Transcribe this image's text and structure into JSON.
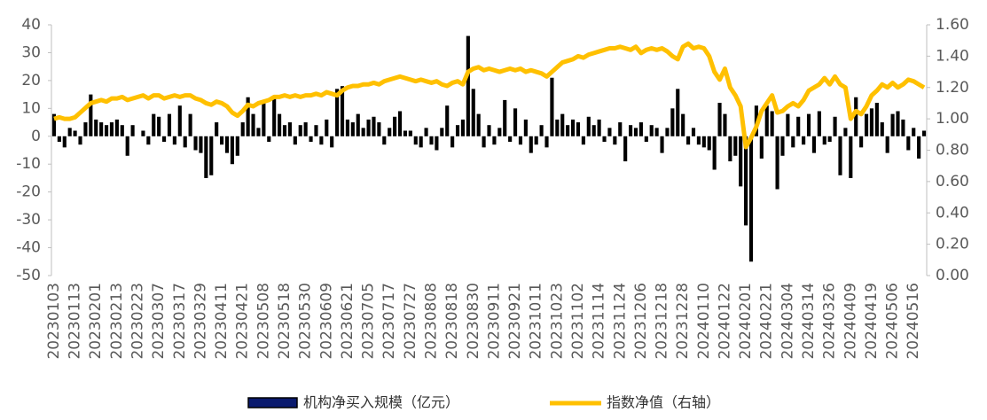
{
  "chart_data": {
    "type": "bar-line",
    "categories": [
      "20230103",
      null,
      null,
      null,
      "20230113",
      null,
      null,
      null,
      "20230201",
      null,
      null,
      null,
      "20230213",
      null,
      null,
      null,
      "20230223",
      null,
      null,
      null,
      "20230307",
      null,
      null,
      null,
      "20230317",
      null,
      null,
      null,
      "20230329",
      null,
      null,
      null,
      "20230411",
      null,
      null,
      null,
      "20230421",
      null,
      null,
      null,
      "20230508",
      null,
      null,
      null,
      "20230518",
      null,
      null,
      null,
      "20230530",
      null,
      null,
      null,
      "20230609",
      null,
      null,
      null,
      "20230621",
      null,
      null,
      null,
      "20230705",
      null,
      null,
      null,
      "20230717",
      null,
      null,
      null,
      "20230727",
      null,
      null,
      null,
      "20230808",
      null,
      null,
      null,
      "20230818",
      null,
      null,
      null,
      "20230830",
      null,
      null,
      null,
      "20230911",
      null,
      null,
      null,
      "20230921",
      null,
      null,
      null,
      "20231011",
      null,
      null,
      null,
      "20231023",
      null,
      null,
      null,
      "20231102",
      null,
      null,
      null,
      "20231114",
      null,
      null,
      null,
      "20231124",
      null,
      null,
      null,
      "20231206",
      null,
      null,
      null,
      "20231218",
      null,
      null,
      null,
      "20231228",
      null,
      null,
      null,
      "20240110",
      null,
      null,
      null,
      "20240122",
      null,
      null,
      null,
      "20240201",
      null,
      null,
      null,
      "20240221",
      null,
      null,
      null,
      "20240304",
      null,
      null,
      null,
      "20240314",
      null,
      null,
      null,
      "20240326",
      null,
      null,
      null,
      "20240409",
      null,
      null,
      null,
      "20240419",
      null,
      null,
      null,
      "20240506",
      null,
      null,
      null,
      "20240516",
      null,
      null
    ],
    "series": [
      {
        "name": "机构净买入规模（亿元）",
        "color": "#000000",
        "legend_color": "#0a1a6e",
        "values": [
          8,
          -2,
          -4,
          3,
          2,
          -3,
          5,
          15,
          6,
          5,
          4,
          5,
          6,
          4,
          -7,
          4,
          0,
          2,
          -3,
          8,
          7,
          -2,
          8,
          -3,
          11,
          -4,
          8,
          -5,
          -6,
          -15,
          -14,
          5,
          -3,
          -6,
          -10,
          -7,
          5,
          14,
          8,
          3,
          12,
          -2,
          14,
          8,
          4,
          5,
          -3,
          4,
          5,
          -2,
          4,
          -3,
          6,
          -4,
          17,
          18,
          6,
          5,
          8,
          3,
          6,
          7,
          5,
          -3,
          3,
          7,
          9,
          2,
          2,
          -3,
          -4,
          3,
          -3,
          -5,
          3,
          11,
          -4,
          4,
          6,
          36,
          17,
          8,
          -4,
          4,
          -3,
          3,
          13,
          -2,
          10,
          -3,
          6,
          -6,
          -3,
          4,
          -4,
          21,
          6,
          8,
          4,
          6,
          5,
          -3,
          7,
          4,
          6,
          -2,
          3,
          -3,
          5,
          -9,
          4,
          3,
          5,
          -2,
          4,
          3,
          -6,
          3,
          10,
          17,
          8,
          -3,
          3,
          -3,
          -4,
          -5,
          -12,
          12,
          8,
          -9,
          -7,
          -18,
          -32,
          -45,
          11,
          -8,
          11,
          9,
          -19,
          -7,
          8,
          -4,
          7,
          -3,
          8,
          -6,
          9,
          -3,
          -2,
          7,
          -14,
          3,
          -15,
          14,
          -4,
          8,
          10,
          12,
          5,
          -6,
          8,
          9,
          6,
          -5,
          3,
          -8,
          2
        ]
      },
      {
        "name": "指数净值（右轴）",
        "color": "#ffc000",
        "axis": "y2",
        "values": [
          1.0,
          1.01,
          1.0,
          1.0,
          1.01,
          1.04,
          1.07,
          1.1,
          1.11,
          1.12,
          1.11,
          1.13,
          1.13,
          1.14,
          1.12,
          1.13,
          1.14,
          1.15,
          1.13,
          1.15,
          1.15,
          1.13,
          1.14,
          1.15,
          1.14,
          1.15,
          1.15,
          1.13,
          1.12,
          1.1,
          1.09,
          1.11,
          1.1,
          1.08,
          1.04,
          1.02,
          1.05,
          1.09,
          1.08,
          1.1,
          1.11,
          1.12,
          1.14,
          1.14,
          1.15,
          1.14,
          1.15,
          1.14,
          1.15,
          1.15,
          1.16,
          1.15,
          1.17,
          1.16,
          1.15,
          1.18,
          1.2,
          1.21,
          1.21,
          1.22,
          1.22,
          1.23,
          1.22,
          1.24,
          1.25,
          1.26,
          1.27,
          1.26,
          1.25,
          1.24,
          1.25,
          1.24,
          1.23,
          1.24,
          1.22,
          1.21,
          1.23,
          1.24,
          1.22,
          1.3,
          1.32,
          1.33,
          1.31,
          1.32,
          1.31,
          1.3,
          1.31,
          1.32,
          1.31,
          1.32,
          1.3,
          1.31,
          1.3,
          1.29,
          1.27,
          1.3,
          1.33,
          1.36,
          1.37,
          1.38,
          1.4,
          1.39,
          1.41,
          1.42,
          1.43,
          1.44,
          1.45,
          1.45,
          1.46,
          1.45,
          1.44,
          1.46,
          1.42,
          1.44,
          1.45,
          1.44,
          1.45,
          1.43,
          1.4,
          1.38,
          1.46,
          1.48,
          1.45,
          1.46,
          1.45,
          1.4,
          1.3,
          1.25,
          1.32,
          1.2,
          1.15,
          1.08,
          0.82,
          0.88,
          0.95,
          1.05,
          1.1,
          1.15,
          1.04,
          1.05,
          1.08,
          1.1,
          1.08,
          1.12,
          1.18,
          1.2,
          1.22,
          1.26,
          1.22,
          1.27,
          1.22,
          1.2,
          1.0,
          1.05,
          1.03,
          1.08,
          1.15,
          1.18,
          1.22,
          1.2,
          1.23,
          1.2,
          1.22,
          1.25,
          1.24,
          1.22,
          1.2
        ]
      }
    ],
    "ylim": [
      -50,
      40
    ],
    "yticks": [
      -50,
      -40,
      -30,
      -20,
      -10,
      0,
      10,
      20,
      30,
      40
    ],
    "y2lim": [
      0,
      1.6
    ],
    "y2ticks": [
      {
        "value": 0,
        "label": "0.00"
      },
      {
        "value": 0.2,
        "label": "0.20"
      },
      {
        "value": 0.4,
        "label": "0.40"
      },
      {
        "value": 0.6,
        "label": "0.60"
      },
      {
        "value": 0.8,
        "label": "0.80"
      },
      {
        "value": 1,
        "label": "1.00"
      },
      {
        "value": 1.2,
        "label": "1.20"
      },
      {
        "value": 1.4,
        "label": "1.40"
      },
      {
        "value": 1.6,
        "label": "1.60"
      }
    ],
    "grid": false
  }
}
